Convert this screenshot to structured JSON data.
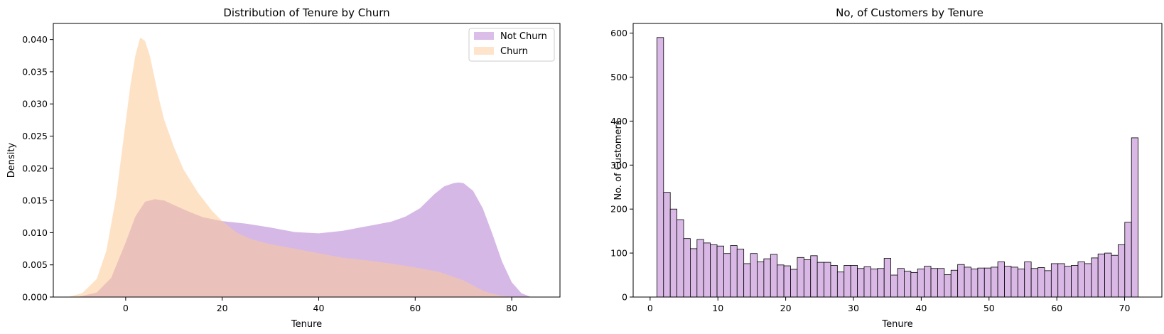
{
  "chart_data": [
    {
      "type": "area",
      "title": "Distribution of Tenure by Churn",
      "xlabel": "Tenure",
      "ylabel": "Density",
      "xlim": [
        -15,
        90
      ],
      "ylim": [
        0,
        0.0425
      ],
      "x_ticks": [
        0,
        20,
        40,
        60,
        80
      ],
      "x_tick_labels": [
        "0",
        "20",
        "40",
        "60",
        "80"
      ],
      "y_ticks": [
        0,
        0.005,
        0.01,
        0.015,
        0.02,
        0.025,
        0.03,
        0.035,
        0.04
      ],
      "y_tick_labels": [
        "0.000",
        "0.005",
        "0.010",
        "0.015",
        "0.020",
        "0.025",
        "0.030",
        "0.035",
        "0.040"
      ],
      "legend_position": "top-right",
      "grid": false,
      "series": [
        {
          "name": "Not Churn",
          "color": "#b57ed1",
          "x": [
            -10,
            -6,
            -3,
            0,
            2,
            4,
            6,
            8,
            10,
            13,
            16,
            20,
            25,
            30,
            35,
            40,
            45,
            50,
            55,
            58,
            61,
            64,
            66,
            68,
            69,
            70,
            72,
            74,
            76,
            78,
            80,
            82,
            84
          ],
          "y": [
            0,
            0.0007,
            0.003,
            0.0085,
            0.0125,
            0.0148,
            0.0152,
            0.015,
            0.0143,
            0.0133,
            0.0124,
            0.0118,
            0.0114,
            0.0108,
            0.0101,
            0.0099,
            0.0103,
            0.011,
            0.0117,
            0.0125,
            0.0138,
            0.016,
            0.0172,
            0.0177,
            0.0178,
            0.0177,
            0.0165,
            0.0138,
            0.0098,
            0.0055,
            0.0023,
            0.0006,
            0
          ]
        },
        {
          "name": "Churn",
          "color": "#fdca98",
          "x": [
            -12,
            -9,
            -6,
            -4,
            -2,
            0,
            1,
            2,
            3,
            4,
            5,
            6,
            7,
            8,
            10,
            12,
            15,
            18,
            20,
            23,
            26,
            30,
            35,
            40,
            45,
            50,
            55,
            60,
            65,
            68,
            70,
            72,
            74,
            76,
            78,
            80,
            83
          ],
          "y": [
            0,
            0.0006,
            0.0028,
            0.0072,
            0.0155,
            0.0272,
            0.033,
            0.0375,
            0.0403,
            0.0398,
            0.0375,
            0.034,
            0.0305,
            0.0275,
            0.0233,
            0.0198,
            0.0162,
            0.0133,
            0.0118,
            0.01,
            0.009,
            0.0082,
            0.0075,
            0.0068,
            0.0061,
            0.0057,
            0.0052,
            0.0046,
            0.0039,
            0.0031,
            0.0026,
            0.0018,
            0.001,
            0.0005,
            0.0002,
            5e-05,
            0
          ]
        }
      ]
    },
    {
      "type": "bar",
      "title": "No, of Customers by Tenure",
      "xlabel": "Tenure",
      "ylabel": "No. of Customers",
      "xlim": [
        -2.5,
        75.5
      ],
      "ylim": [
        0,
        622
      ],
      "x_ticks": [
        0,
        10,
        20,
        30,
        40,
        50,
        60,
        70
      ],
      "x_tick_labels": [
        "0",
        "10",
        "20",
        "30",
        "40",
        "50",
        "60",
        "70"
      ],
      "y_ticks": [
        0,
        100,
        200,
        300,
        400,
        500,
        600
      ],
      "y_tick_labels": [
        "0",
        "100",
        "200",
        "300",
        "400",
        "500",
        "600"
      ],
      "bar_color": "#d9b8e6",
      "edge_color": "#000000",
      "grid": false,
      "categories": [
        1,
        2,
        3,
        4,
        5,
        6,
        7,
        8,
        9,
        10,
        11,
        12,
        13,
        14,
        15,
        16,
        17,
        18,
        19,
        20,
        21,
        22,
        23,
        24,
        25,
        26,
        27,
        28,
        29,
        30,
        31,
        32,
        33,
        34,
        35,
        36,
        37,
        38,
        39,
        40,
        41,
        42,
        43,
        44,
        45,
        46,
        47,
        48,
        49,
        50,
        51,
        52,
        53,
        54,
        55,
        56,
        57,
        58,
        59,
        60,
        61,
        62,
        63,
        64,
        65,
        66,
        67,
        68,
        69,
        70,
        71,
        72
      ],
      "values": [
        590,
        238,
        200,
        176,
        133,
        110,
        131,
        123,
        119,
        116,
        99,
        117,
        109,
        76,
        99,
        80,
        87,
        97,
        73,
        71,
        63,
        90,
        85,
        94,
        79,
        79,
        72,
        57,
        72,
        72,
        65,
        69,
        64,
        65,
        88,
        50,
        65,
        59,
        56,
        64,
        70,
        65,
        65,
        51,
        61,
        74,
        68,
        64,
        66,
        66,
        68,
        80,
        70,
        68,
        64,
        80,
        65,
        67,
        60,
        76,
        76,
        70,
        72,
        80,
        76,
        89,
        98,
        100,
        95,
        119,
        170,
        362
      ]
    }
  ]
}
